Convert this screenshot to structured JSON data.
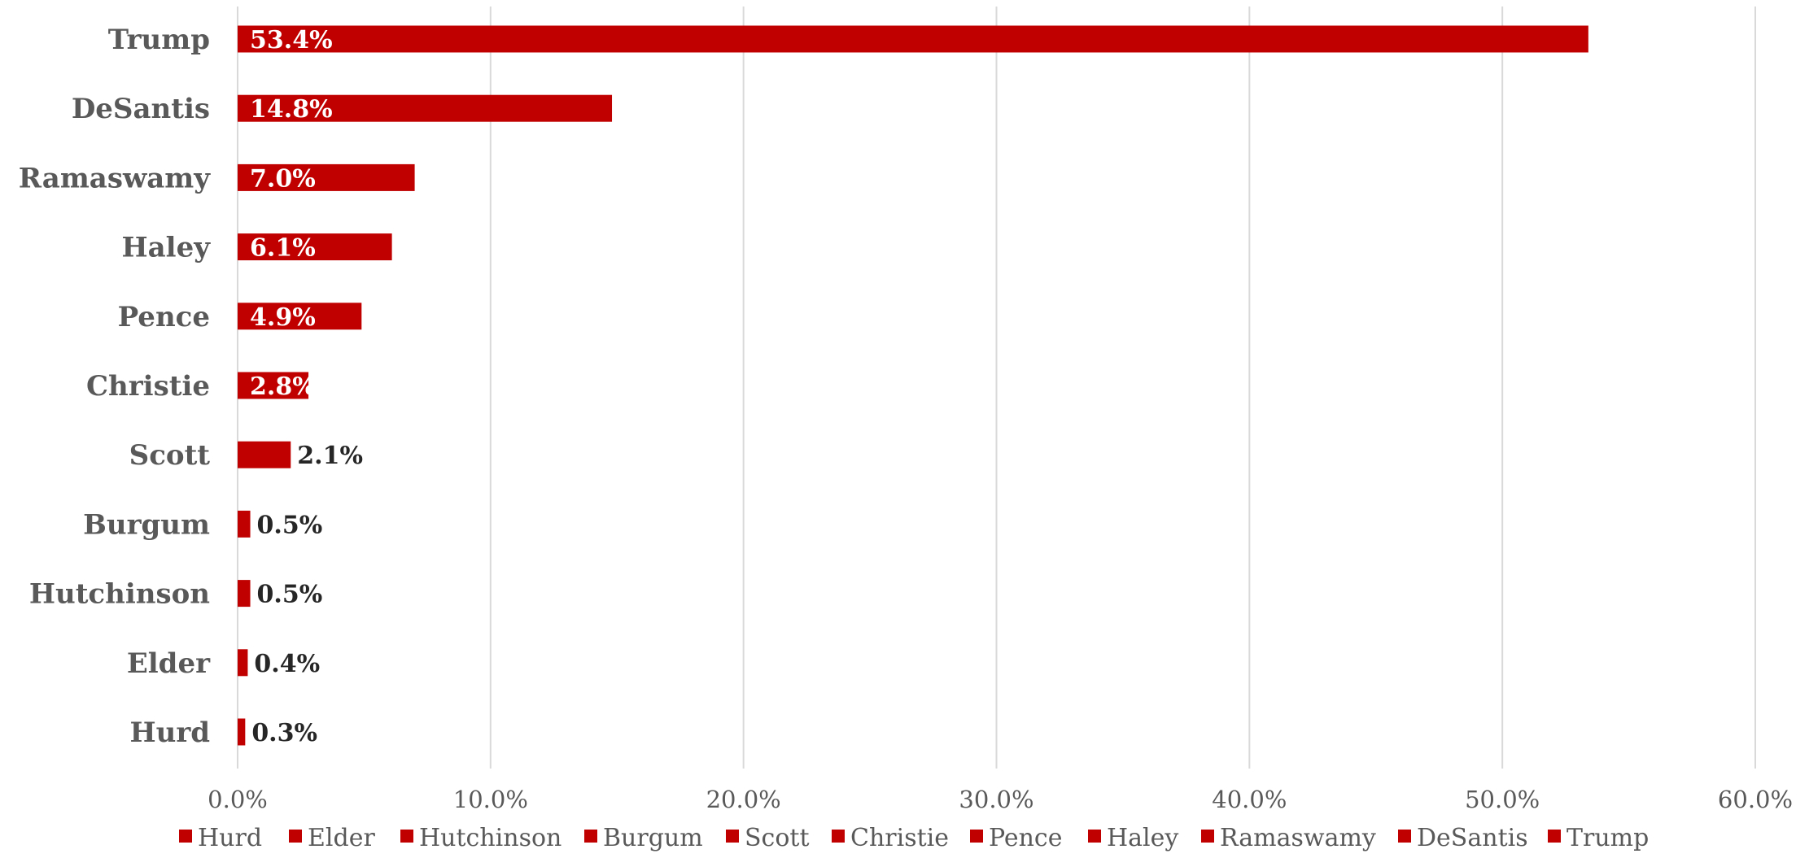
{
  "chart_data": {
    "type": "bar",
    "orientation": "horizontal",
    "categories": [
      "Trump",
      "DeSantis",
      "Ramaswamy",
      "Haley",
      "Pence",
      "Christie",
      "Scott",
      "Burgum",
      "Hutchinson",
      "Elder",
      "Hurd"
    ],
    "values": [
      53.4,
      14.8,
      7.0,
      6.1,
      4.9,
      2.8,
      2.1,
      0.5,
      0.5,
      0.4,
      0.3
    ],
    "data_labels": [
      "53.4%",
      "14.8%",
      "7.0%",
      "6.1%",
      "4.9%",
      "2.8%",
      "2.1%",
      "0.5%",
      "0.5%",
      "0.4%",
      "0.3%"
    ],
    "xlim": [
      0,
      60
    ],
    "x_ticks": [
      0,
      10,
      20,
      30,
      40,
      50,
      60
    ],
    "x_tick_labels": [
      "0.0%",
      "10.0%",
      "20.0%",
      "30.0%",
      "40.0%",
      "50.0%",
      "60.0%"
    ],
    "title": "",
    "xlabel": "",
    "ylabel": "",
    "grid": true,
    "legend_position": "bottom",
    "legend": [
      "Hurd",
      "Elder",
      "Hutchinson",
      "Burgum",
      "Scott",
      "Christie",
      "Pence",
      "Haley",
      "Ramaswamy",
      "DeSantis",
      "Trump"
    ],
    "colors": {
      "bar": "#c00000",
      "gridline": "#d9d9d9",
      "axis_text": "#595959",
      "label_inside": "#ffffff",
      "label_outside": "#262626"
    }
  }
}
